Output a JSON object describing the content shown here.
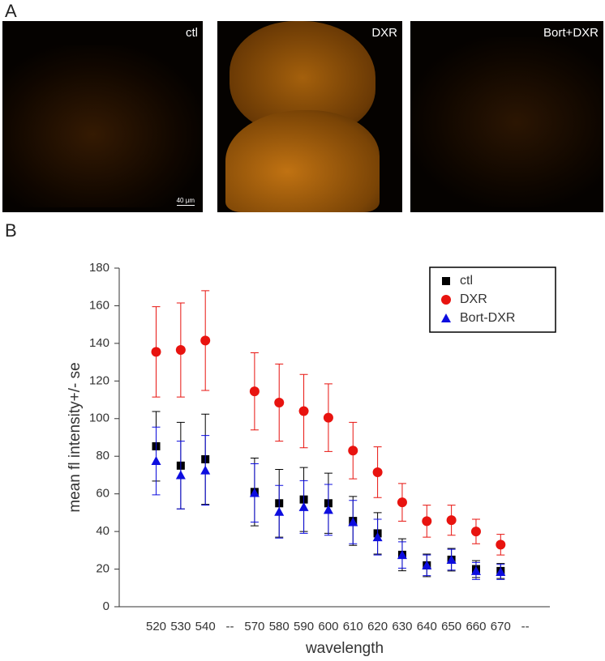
{
  "figure": {
    "panel_a_label": "A",
    "panel_b_label": "B",
    "images": [
      {
        "label": "ctl",
        "scale_bar": "40 µm"
      },
      {
        "label": "DXR"
      },
      {
        "label": "Bort+DXR"
      }
    ]
  },
  "chart_data": {
    "type": "scatter",
    "x_label": "wavelength",
    "y_label": "mean fl intensity+/- se",
    "categories": [
      "520",
      "530",
      "540",
      "--",
      "570",
      "580",
      "590",
      "600",
      "610",
      "620",
      "630",
      "640",
      "650",
      "660",
      "670",
      "--"
    ],
    "series": [
      {
        "name": "ctl",
        "color": "#000000",
        "marker": "square",
        "values": [
          85.3,
          75,
          78.4,
          null,
          61,
          55,
          57,
          55,
          45.6,
          39,
          27.6,
          22,
          25,
          20,
          19,
          null
        ],
        "errors": [
          18.5,
          23,
          24,
          null,
          18,
          18,
          17,
          16,
          13,
          11,
          8.5,
          6,
          6,
          4.5,
          4,
          null
        ]
      },
      {
        "name": "DXR",
        "color": "#e8130f",
        "marker": "circle",
        "values": [
          135.5,
          136.5,
          141.5,
          null,
          114.5,
          108.5,
          104,
          100.5,
          83,
          71.5,
          55.5,
          45.5,
          46,
          40,
          33,
          null
        ],
        "errors": [
          24,
          25,
          26.5,
          null,
          20.5,
          20.5,
          19.5,
          18,
          15,
          13.5,
          10,
          8.5,
          8,
          6.5,
          5.5,
          null
        ]
      },
      {
        "name": "Bort-DXR",
        "color": "#0d0ddf",
        "marker": "triangle",
        "values": [
          77.5,
          70,
          72.5,
          null,
          60.5,
          50.5,
          53,
          51.5,
          45,
          37,
          27.5,
          22,
          25,
          19,
          18.5,
          null
        ],
        "errors": [
          18,
          18,
          18.5,
          null,
          15.5,
          14,
          14,
          13.5,
          11.5,
          9.5,
          7,
          5.5,
          5.5,
          4.5,
          4,
          null
        ]
      }
    ],
    "ylim": [
      0,
      180
    ],
    "yticks": [
      0,
      20,
      40,
      60,
      80,
      100,
      120,
      140,
      160,
      180
    ],
    "legend": "upper right",
    "grid": false
  }
}
